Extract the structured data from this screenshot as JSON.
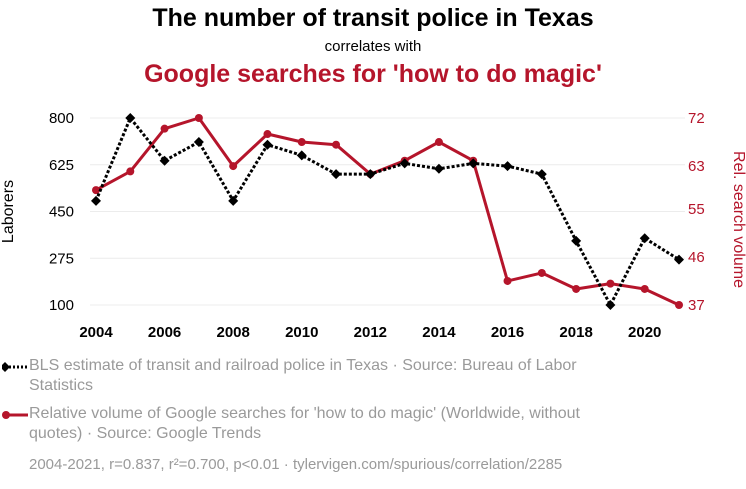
{
  "header": {
    "title": "The number of transit police in Texas",
    "subtitle": "correlates with",
    "title2": "Google searches for 'how to do magic'"
  },
  "legend": {
    "series1": "BLS estimate of transit and railroad police in Texas · Source: Bureau of Labor Statistics",
    "series2": "Relative volume of Google searches for 'how to do magic' (Worldwide, without quotes) · Source: Google Trends"
  },
  "footer": "2004-2021, r=0.837, r²=0.700, p<0.01 · tylervigen.com/spurious/correlation/2285",
  "colors": {
    "series1": "#000000",
    "series2": "#b5152b",
    "grid": "#ececec",
    "legend_text": "#9a9a9a"
  },
  "chart_data": {
    "type": "line",
    "xlabel": "",
    "ylabel_left": "Laborers",
    "ylabel_right": "Rel. search volume",
    "x": [
      2004,
      2005,
      2006,
      2007,
      2008,
      2009,
      2010,
      2011,
      2012,
      2013,
      2014,
      2015,
      2016,
      2017,
      2018,
      2019,
      2020,
      2021
    ],
    "x_ticks": [
      "2004",
      "2006",
      "2008",
      "2010",
      "2012",
      "2014",
      "2016",
      "2018",
      "2020"
    ],
    "xlim": [
      2004,
      2021
    ],
    "y_left_ticks": [
      "100",
      "275",
      "450",
      "625",
      "800"
    ],
    "y_left_lim": [
      100,
      800
    ],
    "y_right_ticks": [
      "37",
      "46",
      "55",
      "63",
      "72"
    ],
    "y_right_lim": [
      37,
      72
    ],
    "grid": true,
    "series": [
      {
        "axis": "left",
        "marker": "diamond",
        "line_style": "dotted",
        "values": [
          490,
          800,
          640,
          710,
          490,
          700,
          660,
          590,
          590,
          630,
          610,
          630,
          620,
          590,
          340,
          100,
          350,
          270
        ]
      },
      {
        "axis": "right",
        "marker": "circle",
        "line_style": "solid",
        "values": [
          58.5,
          62,
          70,
          72,
          63,
          69,
          67.5,
          67,
          61.5,
          64,
          67.5,
          64,
          41.5,
          43,
          40,
          41,
          40,
          37
        ]
      }
    ]
  }
}
